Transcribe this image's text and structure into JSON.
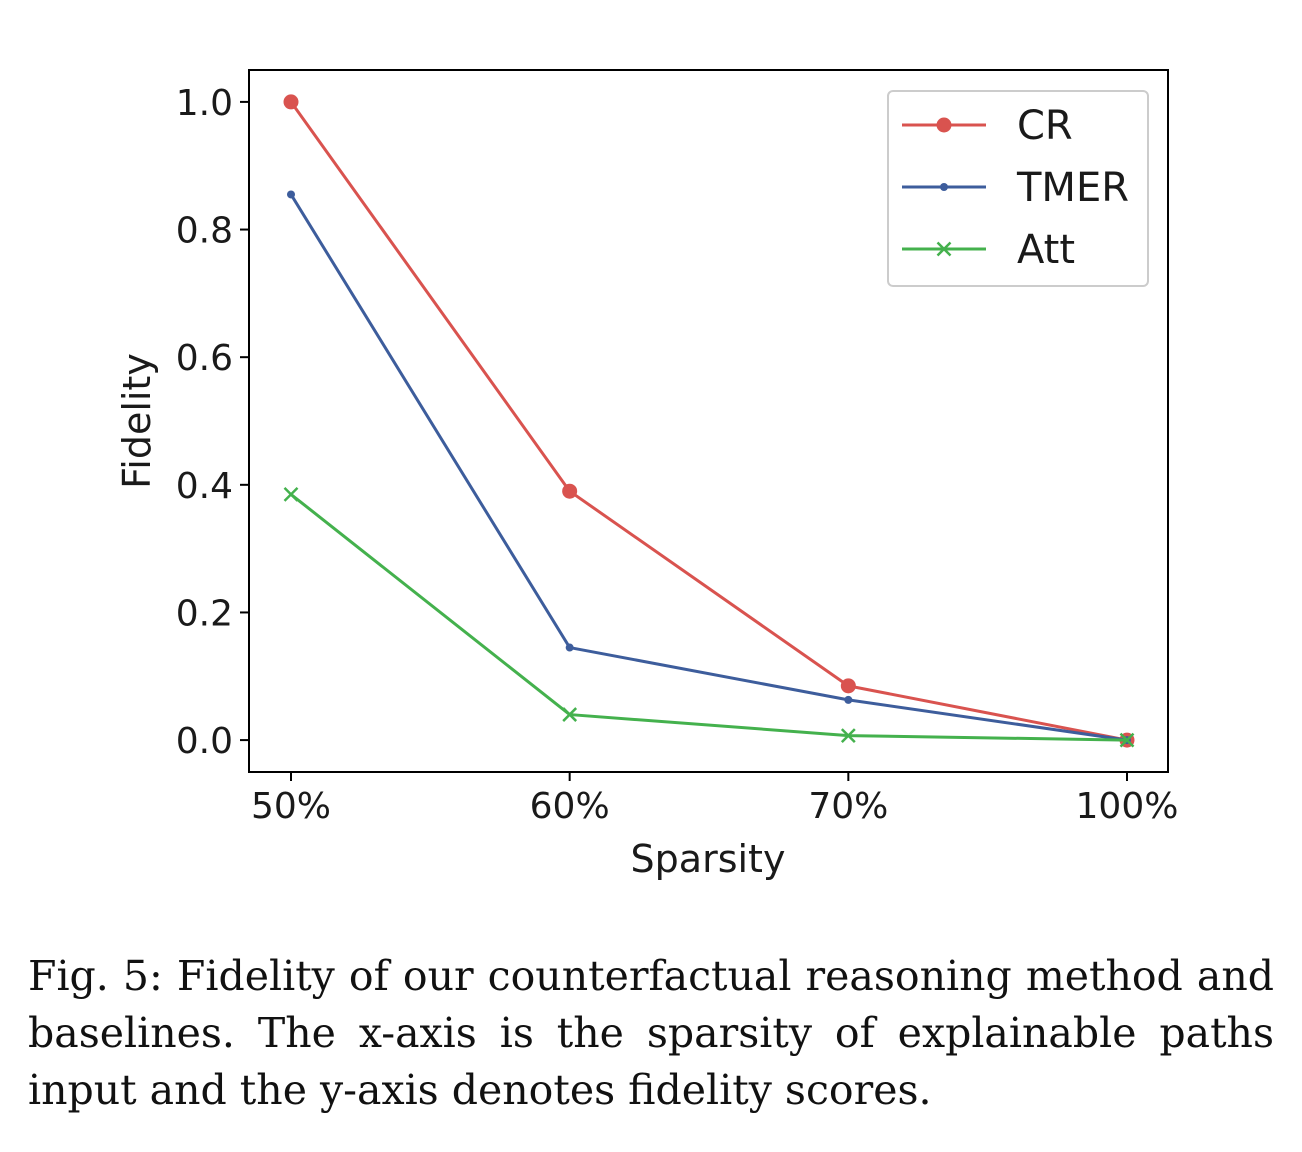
{
  "chart_data": {
    "type": "line",
    "categories": [
      "50%",
      "60%",
      "70%",
      "100%"
    ],
    "xlabel": "Sparsity",
    "ylabel": "Fidelity",
    "ylim": [
      -0.05,
      1.05
    ],
    "yticks": [
      "0.0",
      "0.2",
      "0.4",
      "0.6",
      "0.8",
      "1.0"
    ],
    "grid": false,
    "legend_position": "top-right",
    "series": [
      {
        "name": "CR",
        "marker": "circle",
        "color": "#d9534f",
        "values": [
          1.0,
          0.39,
          0.085,
          0.0
        ]
      },
      {
        "name": "TMER",
        "marker": "dot",
        "color": "#3d5d9c",
        "values": [
          0.855,
          0.145,
          0.063,
          0.0
        ]
      },
      {
        "name": "Att",
        "marker": "x",
        "color": "#44b14d",
        "values": [
          0.385,
          0.04,
          0.007,
          0.0
        ]
      }
    ]
  },
  "caption": "Fig. 5: Fidelity of our counterfactual reasoning method and baselines. The x-axis is the sparsity of explainable paths input and the y-axis denotes fidelity scores."
}
